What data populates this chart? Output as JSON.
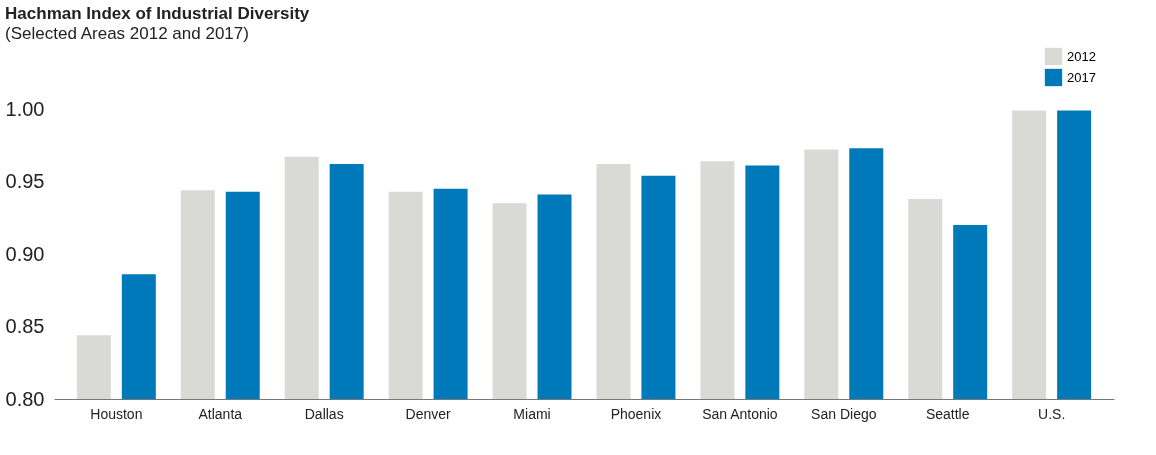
{
  "chart_data": {
    "type": "bar",
    "title": "Hachman Index of Industrial Diversity",
    "subtitle": "(Selected Areas 2012 and 2017)",
    "categories": [
      "Houston",
      "Atlanta",
      "Dallas",
      "Denver",
      "Miami",
      "Phoenix",
      "San Antonio",
      "San Diego",
      "Seattle",
      "U.S."
    ],
    "series": [
      {
        "name": "2012",
        "color": "#d9d9d6",
        "values": [
          0.844,
          0.944,
          0.967,
          0.943,
          0.935,
          0.962,
          0.964,
          0.972,
          0.938,
          0.999
        ]
      },
      {
        "name": "2017",
        "color": "#0079ba",
        "values": [
          0.886,
          0.943,
          0.962,
          0.945,
          0.941,
          0.954,
          0.961,
          0.973,
          0.92,
          0.999
        ]
      }
    ],
    "ylim": [
      0.8,
      1.0
    ],
    "yticks": [
      {
        "value": 0.8,
        "label": "0.80"
      },
      {
        "value": 0.85,
        "label": "0.85"
      },
      {
        "value": 0.9,
        "label": "0.90"
      },
      {
        "value": 0.95,
        "label": "0.95"
      },
      {
        "value": 1.0,
        "label": "1.00"
      }
    ],
    "grid": false,
    "legend": "top right"
  }
}
